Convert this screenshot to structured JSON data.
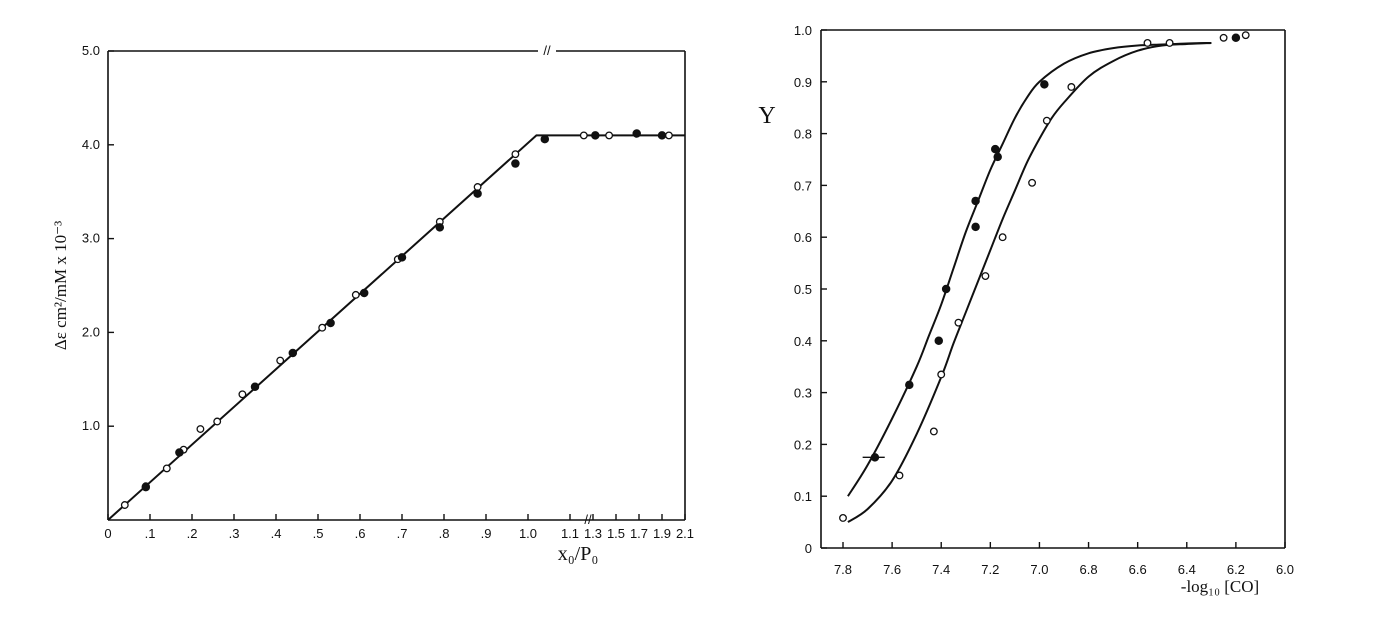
{
  "chart_data": [
    {
      "type": "scatter",
      "title": "",
      "xlabel": "x₀/P₀",
      "ylabel": "Δε cm²/mM x 10⁻³",
      "xlim": [
        0,
        2.1
      ],
      "ylim": [
        0,
        5.0
      ],
      "x_tick_labels": [
        "0",
        ".1",
        ".2",
        ".3",
        ".4",
        ".5",
        ".6",
        ".7",
        ".8",
        ".9",
        "1.0",
        "1.1",
        "1.3",
        "1.5",
        "1.7",
        "1.9",
        "2.1"
      ],
      "y_tick_labels": [
        "1.0",
        "2.0",
        "3.0",
        "4.0",
        "5.0"
      ],
      "axis_break": "//",
      "grid": false,
      "legend": "none",
      "series": [
        {
          "marker": "open",
          "x": [
            0.04,
            0.09,
            0.14,
            0.18,
            0.22,
            0.26,
            0.32,
            0.41,
            0.51,
            0.59,
            0.69,
            0.79,
            0.88,
            0.97,
            1.22,
            1.32,
            1.44,
            1.96
          ],
          "y": [
            0.16,
            0.36,
            0.55,
            0.75,
            0.97,
            1.05,
            1.34,
            1.7,
            2.05,
            2.4,
            2.78,
            3.18,
            3.55,
            3.9,
            4.1,
            4.1,
            4.1,
            4.1
          ]
        },
        {
          "marker": "filled",
          "x": [
            0.09,
            0.17,
            0.35,
            0.44,
            0.53,
            0.61,
            0.7,
            0.79,
            0.88,
            0.97,
            1.04,
            1.32,
            1.68,
            1.9
          ],
          "y": [
            0.35,
            0.72,
            1.42,
            1.78,
            2.1,
            2.42,
            2.8,
            3.12,
            3.48,
            3.8,
            4.06,
            4.1,
            4.12,
            4.1
          ]
        },
        {
          "type": "line",
          "x": [
            0,
            1.02,
            1.11,
            2.1
          ],
          "y": [
            0,
            4.1,
            4.1,
            4.1
          ]
        }
      ]
    },
    {
      "type": "scatter",
      "title": "",
      "xlabel": "-log₁₀ [CO]",
      "ylabel": "Y",
      "xlim": [
        7.8,
        6.0
      ],
      "ylim": [
        0,
        1.0
      ],
      "x_tick_labels": [
        "7.8",
        "7.6",
        "7.4",
        "7.2",
        "7.0",
        "6.8",
        "6.6",
        "6.4",
        "6.2",
        "6.0"
      ],
      "y_tick_labels": [
        "0",
        "0.1",
        "0.2",
        "0.3",
        "0.4",
        "0.5",
        "0.6",
        "0.7",
        "0.8",
        "0.9",
        "1.0"
      ],
      "grid": false,
      "legend": "none",
      "series": [
        {
          "marker": "filled",
          "x": [
            7.67,
            7.53,
            7.41,
            7.38,
            7.26,
            7.18,
            7.17,
            6.98,
            6.2
          ],
          "y": [
            0.175,
            0.315,
            0.4,
            0.5,
            0.62,
            0.77,
            0.755,
            0.895,
            0.985
          ],
          "error_bar_x": [
            7.72,
            7.63
          ]
        },
        {
          "marker": "filled",
          "x": [
            7.26
          ],
          "y": [
            0.67
          ]
        },
        {
          "marker": "open",
          "x": [
            7.8,
            7.57,
            7.43,
            7.4,
            7.33,
            7.22,
            7.15,
            7.03,
            6.97,
            6.87,
            6.56,
            6.47,
            6.25,
            6.16
          ],
          "y": [
            0.058,
            0.14,
            0.225,
            0.335,
            0.435,
            0.525,
            0.6,
            0.705,
            0.825,
            0.89,
            0.975,
            0.975,
            0.985,
            0.99
          ]
        },
        {
          "type": "curve",
          "x": [
            7.78,
            7.7,
            7.6,
            7.5,
            7.45,
            7.4,
            7.35,
            7.3,
            7.25,
            7.2,
            7.15,
            7.1,
            7.05,
            7.0,
            6.9,
            6.8,
            6.7,
            6.6,
            6.5,
            6.4,
            6.3
          ],
          "y": [
            0.1,
            0.16,
            0.25,
            0.35,
            0.41,
            0.47,
            0.54,
            0.61,
            0.67,
            0.73,
            0.78,
            0.83,
            0.87,
            0.9,
            0.935,
            0.955,
            0.965,
            0.97,
            0.972,
            0.974,
            0.975
          ]
        },
        {
          "type": "curve",
          "x": [
            7.78,
            7.7,
            7.6,
            7.5,
            7.4,
            7.35,
            7.3,
            7.25,
            7.2,
            7.15,
            7.1,
            7.05,
            7.0,
            6.95,
            6.9,
            6.8,
            6.7,
            6.6,
            6.5,
            6.4,
            6.3
          ],
          "y": [
            0.05,
            0.075,
            0.13,
            0.22,
            0.33,
            0.395,
            0.455,
            0.515,
            0.575,
            0.635,
            0.69,
            0.745,
            0.79,
            0.83,
            0.86,
            0.91,
            0.94,
            0.96,
            0.97,
            0.973,
            0.975
          ]
        }
      ]
    }
  ]
}
